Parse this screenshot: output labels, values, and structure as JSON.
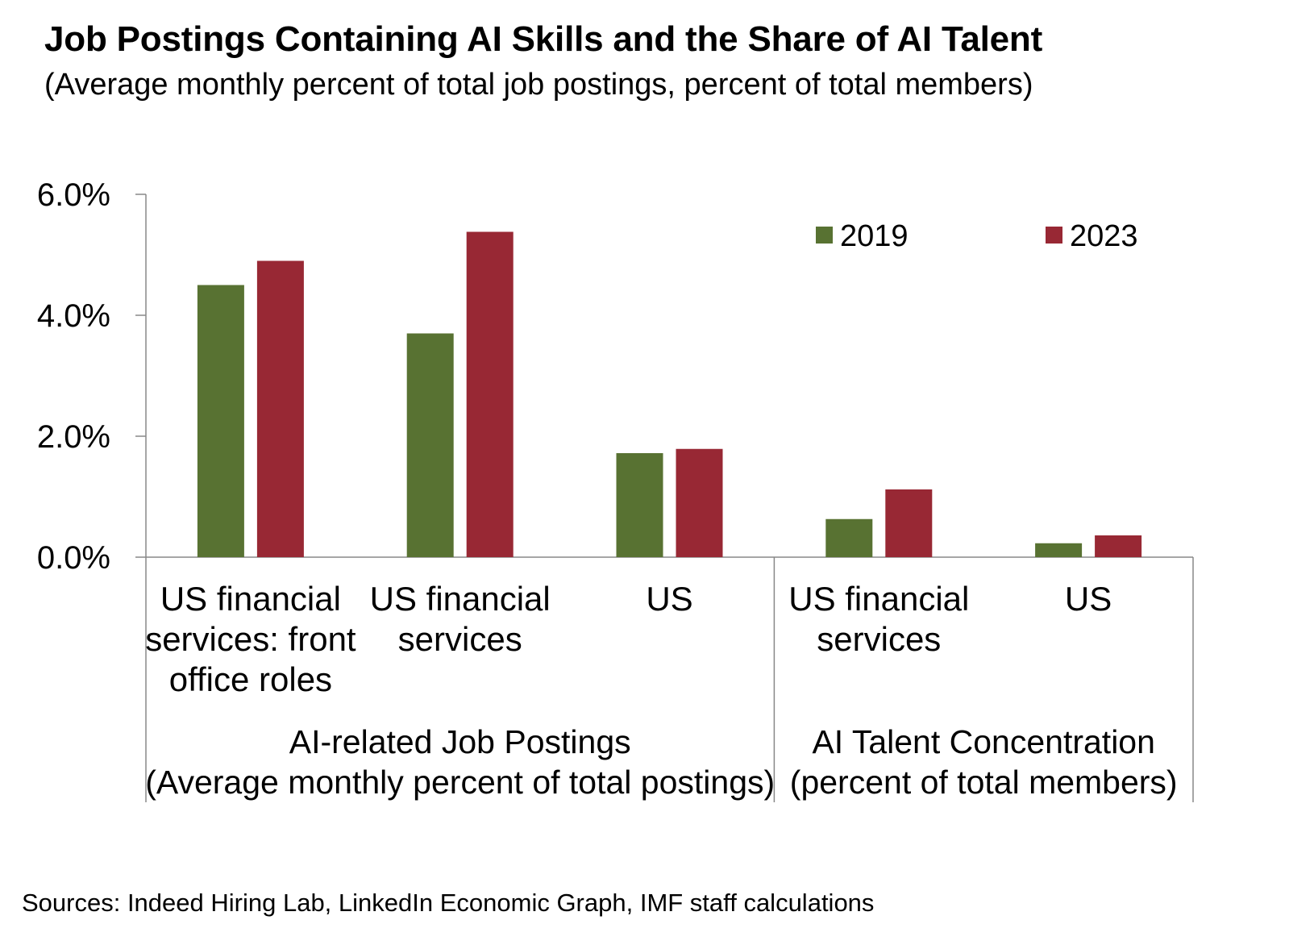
{
  "title": "Job Postings Containing AI Skills and the Share of AI Talent",
  "subtitle": "(Average monthly percent of total job postings, percent of total members)",
  "source": "Sources: Indeed Hiring Lab, LinkedIn Economic Graph, IMF staff calculations",
  "colors": {
    "s2019": "#587232",
    "s2023": "#982834"
  },
  "chart_data": {
    "type": "bar",
    "ylim": [
      0,
      6
    ],
    "yticks": [
      "0.0%",
      "2.0%",
      "4.0%",
      "6.0%"
    ],
    "grid": false,
    "legend_position": "top-right",
    "categories": [
      [
        "US financial",
        "services: front",
        "office roles"
      ],
      [
        "US financial",
        "services"
      ],
      [
        "US"
      ],
      [
        "US financial",
        "services"
      ],
      [
        "US"
      ]
    ],
    "groups": [
      {
        "label": [
          "AI-related Job Postings",
          "(Average monthly percent of total postings)"
        ],
        "start": 0,
        "end": 2
      },
      {
        "label": [
          "AI Talent Concentration",
          "(percent of total members)"
        ],
        "start": 3,
        "end": 4
      }
    ],
    "series": [
      {
        "name": "2019",
        "values": [
          4.5,
          3.7,
          1.72,
          0.63,
          0.23
        ]
      },
      {
        "name": "2023",
        "values": [
          4.9,
          5.38,
          1.79,
          1.12,
          0.36
        ]
      }
    ]
  }
}
